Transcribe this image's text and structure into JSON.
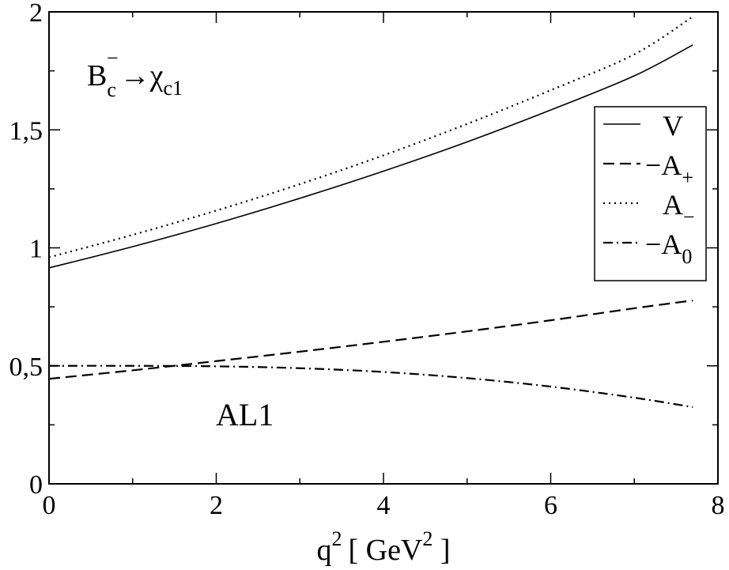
{
  "chart_data": {
    "type": "line",
    "xlabel": "q",
    "xlabel_sup": "2",
    "xlabel_unit_open": "[ GeV",
    "xlabel_unit_sup": "2",
    "xlabel_unit_close": " ]",
    "ylabel": "",
    "xlim": [
      0,
      8
    ],
    "ylim": [
      0,
      2
    ],
    "x_ticks": [
      0,
      2,
      4,
      6,
      8
    ],
    "x_tick_labels": [
      "0",
      "2",
      "4",
      "6",
      "8"
    ],
    "y_ticks": [
      0,
      0.5,
      1,
      1.5,
      2
    ],
    "y_tick_labels": [
      "0",
      "0,5",
      "1",
      "1,5",
      "2"
    ],
    "grid": false,
    "legend_position": "right",
    "annotations": {
      "process": {
        "main": "B",
        "sub": "c",
        "sup": "−",
        "arrow": "→",
        "final": "χ",
        "final_sub": "c1"
      },
      "model": "AL1"
    },
    "series": [
      {
        "key": "V",
        "legend_main": "V",
        "legend_sign": "",
        "legend_sub": "",
        "style": "solid",
        "x": [
          0,
          1,
          2,
          3,
          4,
          5,
          6,
          7,
          7.7
        ],
        "y": [
          0.915,
          1.005,
          1.103,
          1.21,
          1.325,
          1.449,
          1.584,
          1.729,
          1.86
        ]
      },
      {
        "key": "Aplus",
        "legend_main": "A",
        "legend_sign": "−",
        "legend_sub": "+",
        "style": "dashed",
        "x": [
          0,
          1,
          2,
          3,
          4,
          5,
          6,
          7,
          7.7
        ],
        "y": [
          0.445,
          0.481,
          0.52,
          0.56,
          0.602,
          0.646,
          0.693,
          0.744,
          0.777
        ]
      },
      {
        "key": "Aminus",
        "legend_main": "A",
        "legend_sign": "",
        "legend_sub": "−",
        "style": "dotted",
        "x": [
          0,
          1,
          2,
          3,
          4,
          5,
          6,
          7,
          7.7
        ],
        "y": [
          0.96,
          1.055,
          1.158,
          1.27,
          1.392,
          1.525,
          1.668,
          1.82,
          1.98
        ]
      },
      {
        "key": "A0",
        "legend_main": "A",
        "legend_sign": "−",
        "legend_sub": "0",
        "style": "dashdot",
        "x": [
          0,
          1,
          2,
          3,
          4,
          5,
          6,
          7,
          7.7
        ],
        "y": [
          0.5,
          0.5,
          0.498,
          0.49,
          0.474,
          0.448,
          0.412,
          0.365,
          0.325
        ]
      }
    ]
  }
}
